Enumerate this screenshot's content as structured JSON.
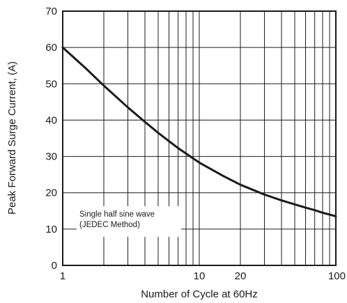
{
  "chart_data": {
    "type": "line",
    "title": "",
    "xlabel": "Number of Cycle at 60Hz",
    "ylabel": "Peak Forward Surge Current, (A)",
    "x_scale": "log",
    "xlim": [
      1,
      100
    ],
    "ylim": [
      0,
      70
    ],
    "grid": true,
    "x_ticks": [
      {
        "value": 1,
        "label": "1"
      },
      {
        "value": 10,
        "label": "10"
      },
      {
        "value": 20,
        "label": "20"
      },
      {
        "value": 100,
        "label": "100"
      }
    ],
    "y_ticks": [
      {
        "value": 0,
        "label": "0"
      },
      {
        "value": 10,
        "label": "10"
      },
      {
        "value": 20,
        "label": "20"
      },
      {
        "value": 30,
        "label": "30"
      },
      {
        "value": 40,
        "label": "40"
      },
      {
        "value": 50,
        "label": "50"
      },
      {
        "value": 60,
        "label": "60"
      },
      {
        "value": 70,
        "label": "70"
      }
    ],
    "annotation": [
      "Single half sine wave",
      "(JEDEC Method)"
    ],
    "series": [
      {
        "x": [
          1,
          1.5,
          2,
          3,
          4,
          5,
          6,
          7,
          8,
          9,
          10,
          15,
          20,
          30,
          40,
          50,
          60,
          70,
          80,
          90,
          100
        ],
        "y": [
          60,
          54,
          49.5,
          43.5,
          39.5,
          36.5,
          34.2,
          32.3,
          30.8,
          29.5,
          28.3,
          24.6,
          22.2,
          19.5,
          17.9,
          16.8,
          15.9,
          15.2,
          14.5,
          14.0,
          13.5
        ]
      }
    ]
  }
}
